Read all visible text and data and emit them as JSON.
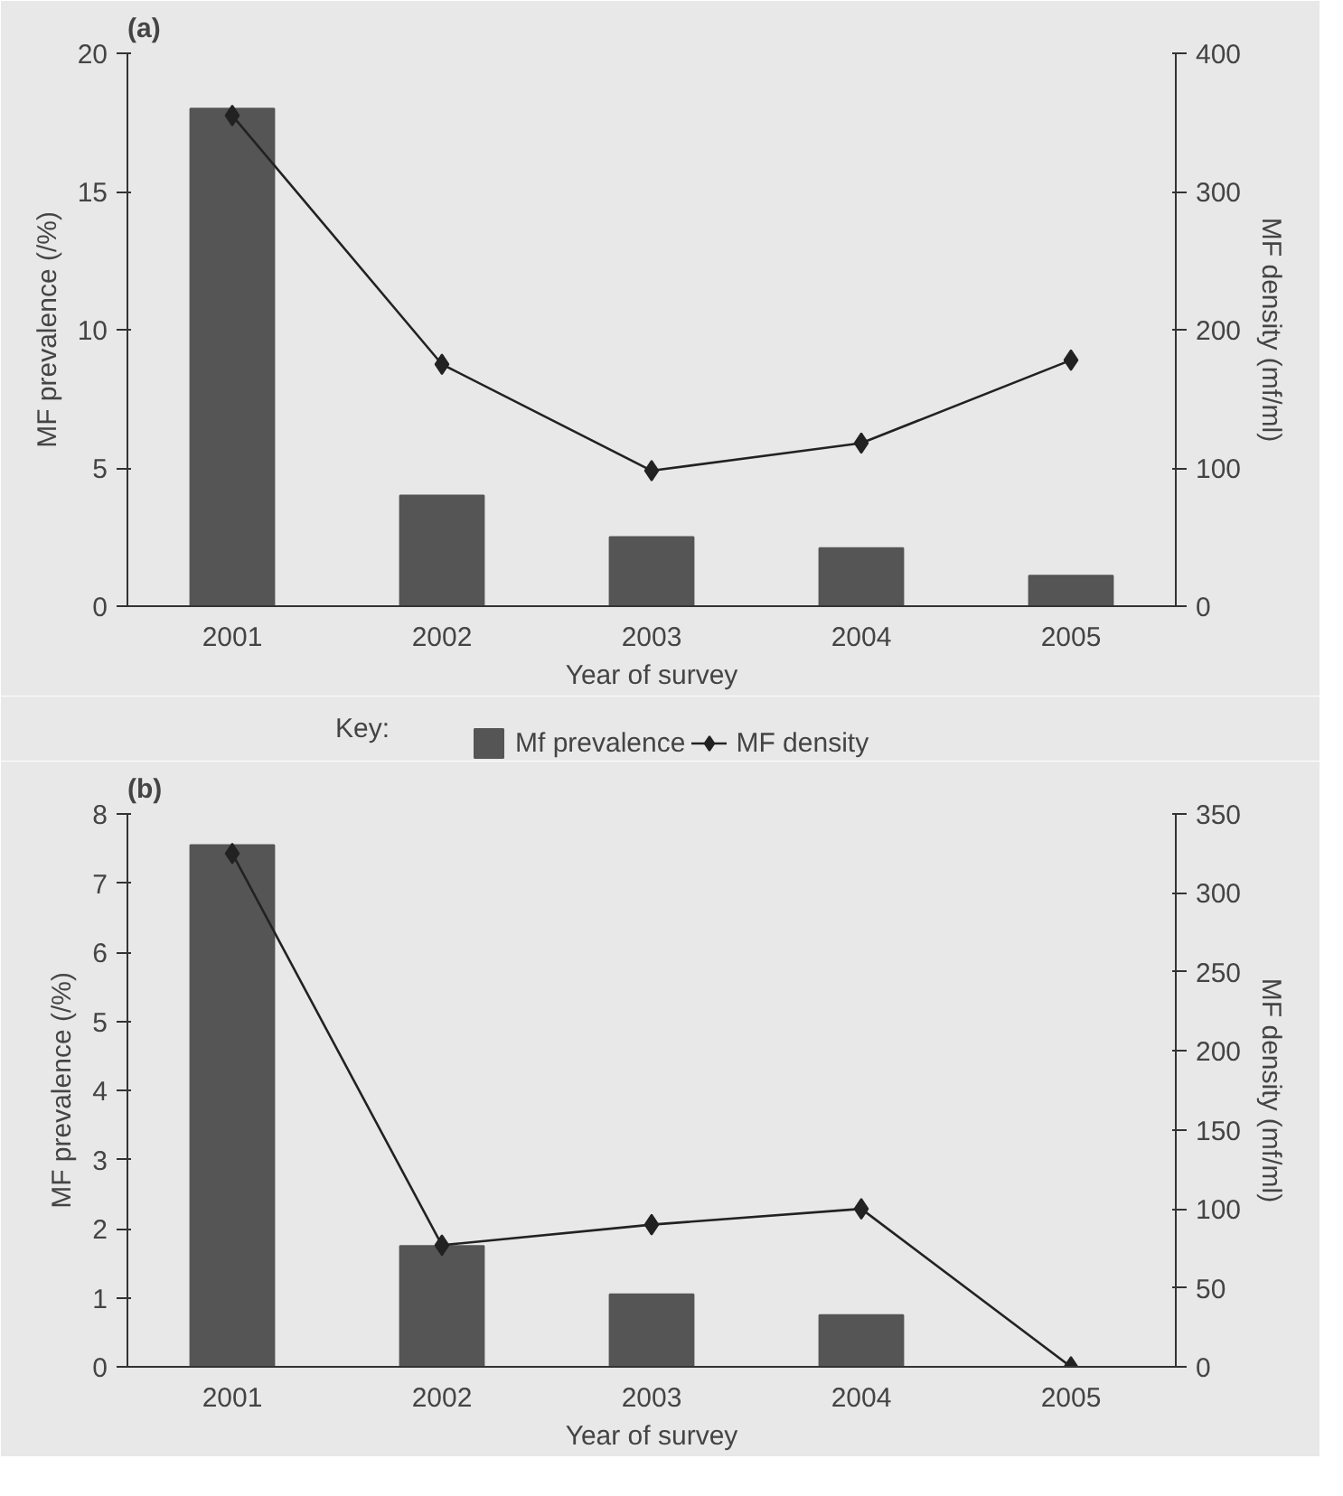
{
  "chart_data": [
    {
      "type": "bar",
      "title": "(a)",
      "categories": [
        "2001",
        "2002",
        "2003",
        "2004",
        "2005"
      ],
      "xlabel": "Year of survey",
      "ylabel": "MF prevalence (/%)",
      "y2label": "MF density (mf/ml)",
      "ylim": [
        0,
        20
      ],
      "yticks": [
        0,
        5,
        10,
        15,
        20
      ],
      "y2lim": [
        0,
        400
      ],
      "y2ticks": [
        0,
        100,
        200,
        300,
        400
      ],
      "grid": false,
      "legend": "bottom",
      "legend_title": "Key:",
      "series": [
        {
          "name": "Mf prevalence",
          "color": "#555555",
          "values": [
            18,
            4,
            2.5,
            2.1,
            1.1
          ]
        },
        {
          "type": "line",
          "name": "MF density",
          "color": "#222222",
          "axis": "y2",
          "marker": "diamond",
          "values": [
            355,
            175,
            98,
            118,
            178
          ]
        }
      ]
    },
    {
      "type": "bar",
      "title": "(b)",
      "categories": [
        "2001",
        "2002",
        "2003",
        "2004",
        "2005"
      ],
      "xlabel": "Year of survey",
      "ylabel": "MF prevalence (/%)",
      "y2label": "MF density (mf/ml)",
      "ylim": [
        0,
        8
      ],
      "yticks": [
        0,
        1,
        2,
        3,
        4,
        5,
        6,
        7,
        8
      ],
      "y2lim": [
        0,
        350
      ],
      "y2ticks": [
        0,
        50,
        100,
        150,
        200,
        250,
        300,
        350
      ],
      "grid": false,
      "series": [
        {
          "color": "#555555",
          "values": [
            7.55,
            1.75,
            1.05,
            0.75,
            0
          ]
        },
        {
          "type": "line",
          "color": "#222222",
          "axis": "y2",
          "marker": "diamond",
          "values": [
            325,
            77,
            90,
            100,
            0
          ]
        }
      ]
    }
  ]
}
